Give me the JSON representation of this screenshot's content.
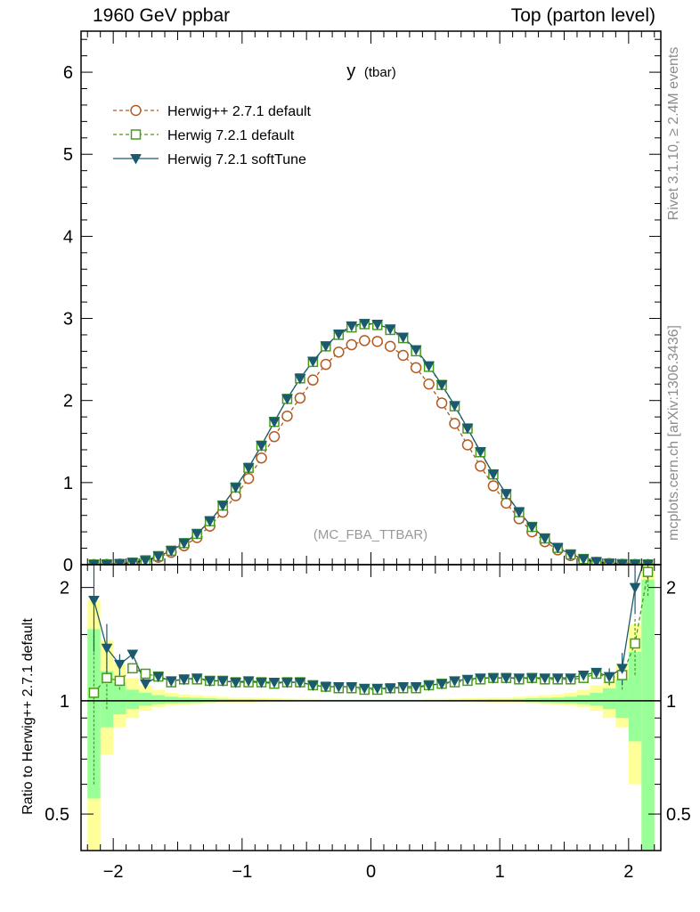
{
  "header": {
    "left": "1960 GeV ppbar",
    "right": "Top (parton level)"
  },
  "side_labels": {
    "top": "Rivet 3.1.10, ≥ 2.4M events",
    "bottom": "mcplots.cern.ch [arXiv:1306.3436]"
  },
  "colors": {
    "herwigpp": "#b35a1f",
    "herwig721": "#4a9a1c",
    "softtune": "#1b5a6e",
    "band_yellow": "#ffff99",
    "band_green": "#99ff99",
    "watermark": "#999999"
  },
  "chart_data": [
    {
      "type": "line",
      "title": "y",
      "title_sub": "(tbar)",
      "watermark": "(MC_FBA_TTBAR)",
      "xlim": [
        -2.25,
        2.25
      ],
      "ylim": [
        0,
        6.5
      ],
      "yticks": [
        0,
        1,
        2,
        3,
        4,
        5,
        6
      ],
      "x": [
        -2.15,
        -2.05,
        -1.95,
        -1.85,
        -1.75,
        -1.65,
        -1.55,
        -1.45,
        -1.35,
        -1.25,
        -1.15,
        -1.05,
        -0.95,
        -0.85,
        -0.75,
        -0.65,
        -0.55,
        -0.45,
        -0.35,
        -0.25,
        -0.15,
        -0.05,
        0.05,
        0.15,
        0.25,
        0.35,
        0.45,
        0.55,
        0.65,
        0.75,
        0.85,
        0.95,
        1.05,
        1.15,
        1.25,
        1.35,
        1.45,
        1.55,
        1.65,
        1.75,
        1.85,
        1.95,
        2.05,
        2.15
      ],
      "legend_position": "top-left",
      "series": [
        {
          "name": "Herwig++ 2.7.1 default",
          "marker": "open-circle",
          "dashed": true,
          "values": [
            0.0015,
            0.003,
            0.008,
            0.02,
            0.045,
            0.09,
            0.15,
            0.23,
            0.33,
            0.47,
            0.64,
            0.84,
            1.05,
            1.3,
            1.56,
            1.81,
            2.03,
            2.25,
            2.44,
            2.59,
            2.68,
            2.73,
            2.72,
            2.66,
            2.55,
            2.4,
            2.2,
            1.97,
            1.72,
            1.46,
            1.2,
            0.96,
            0.75,
            0.56,
            0.4,
            0.28,
            0.18,
            0.11,
            0.06,
            0.028,
            0.013,
            0.006,
            0.003,
            0.0015
          ]
        },
        {
          "name": "Herwig 7.2.1 default",
          "marker": "open-square",
          "dashed": true,
          "values": [
            0.0016,
            0.0034,
            0.009,
            0.024,
            0.053,
            0.104,
            0.17,
            0.262,
            0.375,
            0.53,
            0.72,
            0.94,
            1.18,
            1.45,
            1.74,
            2.02,
            2.27,
            2.47,
            2.66,
            2.8,
            2.89,
            2.93,
            2.92,
            2.86,
            2.76,
            2.6,
            2.41,
            2.19,
            1.93,
            1.66,
            1.37,
            1.1,
            0.86,
            0.64,
            0.46,
            0.32,
            0.205,
            0.125,
            0.069,
            0.033,
            0.015,
            0.007,
            0.0043,
            0.0021
          ]
        },
        {
          "name": "Herwig 7.2.1 softTune",
          "marker": "filled-triangle-down",
          "dashed": false,
          "values": [
            0.0028,
            0.0041,
            0.0099,
            0.0265,
            0.0497,
            0.104,
            0.1704,
            0.2625,
            0.3775,
            0.5311,
            0.7212,
            0.9416,
            1.1813,
            1.4521,
            1.7413,
            2.0217,
            2.2678,
            2.4791,
            2.6648,
            2.8109,
            2.9102,
            2.9397,
            2.9303,
            2.8727,
            2.772,
            2.6197,
            2.4236,
            2.1926,
            1.9388,
            1.6615,
            1.3774,
            1.1021,
            0.8633,
            0.6422,
            0.4616,
            0.3223,
            0.2063,
            0.1263,
            0.0702,
            0.0333,
            0.0151,
            0.0073,
            0.006,
            0.0038
          ]
        }
      ]
    },
    {
      "type": "line",
      "ylabel": "Ratio to Herwig++ 2.7.1 default",
      "xlim": [
        -2.25,
        2.25
      ],
      "ylim": [
        0.4,
        2.3
      ],
      "xticks": [
        -2,
        -1,
        0,
        1,
        2
      ],
      "yticks": [
        0.5,
        1,
        2
      ],
      "x": [
        -2.15,
        -2.05,
        -1.95,
        -1.85,
        -1.75,
        -1.65,
        -1.55,
        -1.45,
        -1.35,
        -1.25,
        -1.15,
        -1.05,
        -0.95,
        -0.85,
        -0.75,
        -0.65,
        -0.55,
        -0.45,
        -0.35,
        -0.25,
        -0.15,
        -0.05,
        0.05,
        0.15,
        0.25,
        0.35,
        0.45,
        0.55,
        0.65,
        0.75,
        0.85,
        0.95,
        1.05,
        1.15,
        1.25,
        1.35,
        1.45,
        1.55,
        1.65,
        1.75,
        1.85,
        1.95,
        2.05,
        2.15
      ],
      "reference_band": {
        "yellow_low": [
          0.3,
          0.72,
          0.85,
          0.9,
          0.94,
          0.96,
          0.97,
          0.975,
          0.98,
          0.985,
          0.99,
          0.99,
          0.99,
          0.992,
          0.993,
          0.994,
          0.995,
          0.995,
          0.996,
          0.996,
          0.996,
          0.996,
          0.996,
          0.996,
          0.996,
          0.996,
          0.995,
          0.995,
          0.994,
          0.993,
          0.992,
          0.99,
          0.99,
          0.99,
          0.985,
          0.98,
          0.975,
          0.97,
          0.96,
          0.94,
          0.9,
          0.85,
          0.6,
          0.3
        ],
        "yellow_high": [
          1.85,
          1.45,
          1.25,
          1.15,
          1.1,
          1.07,
          1.05,
          1.04,
          1.035,
          1.03,
          1.025,
          1.02,
          1.02,
          1.018,
          1.016,
          1.014,
          1.012,
          1.012,
          1.01,
          1.01,
          1.01,
          1.01,
          1.01,
          1.01,
          1.01,
          1.01,
          1.012,
          1.012,
          1.014,
          1.016,
          1.018,
          1.02,
          1.02,
          1.025,
          1.03,
          1.035,
          1.04,
          1.05,
          1.07,
          1.1,
          1.15,
          1.25,
          1.6,
          2.3
        ],
        "green_low": [
          0.55,
          0.85,
          0.92,
          0.95,
          0.97,
          0.98,
          0.985,
          0.988,
          0.99,
          0.992,
          0.994,
          0.995,
          0.995,
          0.996,
          0.996,
          0.997,
          0.997,
          0.997,
          0.998,
          0.998,
          0.998,
          0.998,
          0.998,
          0.998,
          0.998,
          0.998,
          0.997,
          0.997,
          0.997,
          0.996,
          0.996,
          0.995,
          0.995,
          0.994,
          0.992,
          0.99,
          0.988,
          0.985,
          0.98,
          0.97,
          0.95,
          0.9,
          0.78,
          0.35
        ],
        "green_high": [
          1.55,
          1.2,
          1.12,
          1.07,
          1.05,
          1.035,
          1.025,
          1.02,
          1.018,
          1.015,
          1.012,
          1.01,
          1.01,
          1.009,
          1.008,
          1.007,
          1.006,
          1.006,
          1.005,
          1.005,
          1.005,
          1.005,
          1.005,
          1.005,
          1.005,
          1.005,
          1.006,
          1.006,
          1.007,
          1.008,
          1.009,
          1.01,
          1.01,
          1.012,
          1.015,
          1.018,
          1.02,
          1.025,
          1.035,
          1.05,
          1.08,
          1.14,
          1.35,
          2.1
        ]
      },
      "series": [
        {
          "name": "Herwig 7.2.1 default",
          "values": [
            1.05,
            1.15,
            1.13,
            1.22,
            1.18,
            1.16,
            1.12,
            1.14,
            1.14,
            1.13,
            1.13,
            1.12,
            1.12,
            1.12,
            1.11,
            1.12,
            1.12,
            1.1,
            1.09,
            1.08,
            1.08,
            1.07,
            1.07,
            1.08,
            1.08,
            1.08,
            1.1,
            1.11,
            1.12,
            1.13,
            1.14,
            1.15,
            1.15,
            1.14,
            1.15,
            1.14,
            1.14,
            1.14,
            1.15,
            1.18,
            1.15,
            1.17,
            1.42,
            2.2
          ],
          "err": [
            0.45,
            0.2,
            0.06,
            0.03,
            0.02,
            0.015,
            0.012,
            0.01,
            0.01,
            0.008,
            0.006,
            0.005,
            0.005,
            0.005,
            0.005,
            0.005,
            0.005,
            0.005,
            0.005,
            0.005,
            0.005,
            0.005,
            0.005,
            0.005,
            0.005,
            0.005,
            0.005,
            0.005,
            0.005,
            0.005,
            0.005,
            0.005,
            0.005,
            0.006,
            0.008,
            0.01,
            0.01,
            0.012,
            0.015,
            0.02,
            0.05,
            0.1,
            0.25,
            0.3
          ]
        },
        {
          "name": "Herwig 7.2.1 softTune",
          "values": [
            1.85,
            1.38,
            1.25,
            1.33,
            1.11,
            1.16,
            1.13,
            1.14,
            1.15,
            1.13,
            1.13,
            1.12,
            1.13,
            1.12,
            1.12,
            1.12,
            1.12,
            1.1,
            1.09,
            1.09,
            1.09,
            1.08,
            1.08,
            1.08,
            1.09,
            1.09,
            1.1,
            1.11,
            1.13,
            1.14,
            1.15,
            1.15,
            1.15,
            1.15,
            1.15,
            1.15,
            1.15,
            1.15,
            1.17,
            1.19,
            1.16,
            1.22,
            2.0,
            2.5
          ],
          "err": [
            0.5,
            0.22,
            0.08,
            0.03,
            0.02,
            0.015,
            0.012,
            0.01,
            0.01,
            0.008,
            0.006,
            0.005,
            0.005,
            0.005,
            0.005,
            0.005,
            0.005,
            0.005,
            0.005,
            0.005,
            0.005,
            0.005,
            0.005,
            0.005,
            0.005,
            0.005,
            0.005,
            0.005,
            0.005,
            0.005,
            0.005,
            0.005,
            0.005,
            0.006,
            0.008,
            0.01,
            0.01,
            0.012,
            0.015,
            0.02,
            0.06,
            0.12,
            0.3,
            0.4
          ]
        }
      ]
    }
  ]
}
